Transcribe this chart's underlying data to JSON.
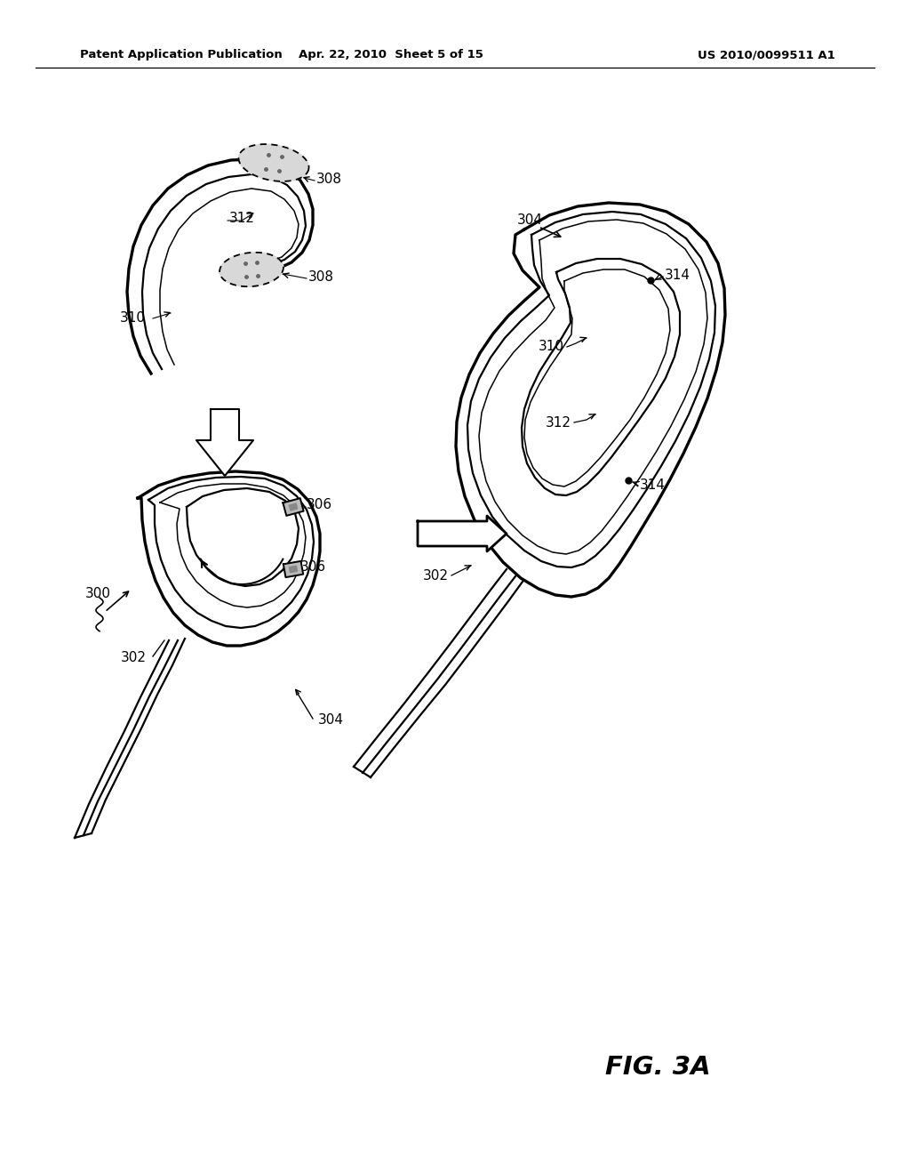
{
  "header_left": "Patent Application Publication",
  "header_mid": "Apr. 22, 2010  Sheet 5 of 15",
  "header_right": "US 2010/0099511 A1",
  "fig_label": "FIG. 3A",
  "bg_color": "#ffffff",
  "line_color": "#000000",
  "label_300": "300",
  "label_302": "302",
  "label_304": "304",
  "label_306a": "306",
  "label_306b": "306",
  "label_308a": "308",
  "label_308b": "308",
  "label_310": "310",
  "label_312a": "312",
  "label_312b": "312",
  "label_310r": "310",
  "label_312r": "312",
  "label_314a": "314",
  "label_314b": "314",
  "label_302r": "302",
  "label_304r": "304"
}
